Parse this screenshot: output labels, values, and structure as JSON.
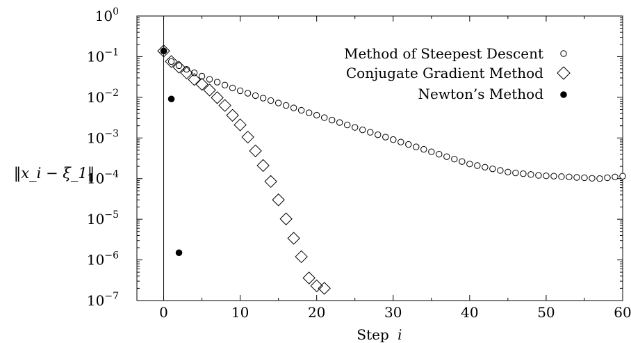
{
  "chart_data": {
    "type": "scatter",
    "title": "",
    "xlabel": "Step",
    "xlabel_var": "i",
    "ylabel": "‖x_i − ξ_1‖",
    "xlim": [
      -3.5,
      60
    ],
    "ylim_exponent": [
      -7,
      0
    ],
    "yscale": "log",
    "grid": false,
    "legend_position": "top-right",
    "x_ticks": [
      0,
      10,
      20,
      30,
      40,
      50,
      60
    ],
    "y_ticks": [
      {
        "value": 1.0,
        "base": "10",
        "exp": "0"
      },
      {
        "value": 0.1,
        "base": "10",
        "exp": "−1"
      },
      {
        "value": 0.01,
        "base": "10",
        "exp": "−2"
      },
      {
        "value": 0.001,
        "base": "10",
        "exp": "−3"
      },
      {
        "value": 0.0001,
        "base": "10",
        "exp": "−4"
      },
      {
        "value": 1e-05,
        "base": "10",
        "exp": "−5"
      },
      {
        "value": 1e-06,
        "base": "10",
        "exp": "−6"
      },
      {
        "value": 1e-07,
        "base": "10",
        "exp": "−7"
      }
    ],
    "series": [
      {
        "name": "Method of Steepest Descent",
        "marker": "open-circle",
        "x": [
          0,
          1,
          2,
          3,
          4,
          5,
          6,
          7,
          8,
          9,
          10,
          11,
          12,
          13,
          14,
          15,
          16,
          17,
          18,
          19,
          20,
          21,
          22,
          23,
          24,
          25,
          26,
          27,
          28,
          29,
          30,
          31,
          32,
          33,
          34,
          35,
          36,
          37,
          38,
          39,
          40,
          41,
          42,
          43,
          44,
          45,
          46,
          47,
          48,
          49,
          50,
          51,
          52,
          53,
          54,
          55,
          56,
          57,
          58,
          59,
          60
        ],
        "y": [
          0.138,
          0.0759,
          0.06,
          0.0487,
          0.0399,
          0.0331,
          0.0278,
          0.0236,
          0.02,
          0.017,
          0.0145,
          0.0126,
          0.011,
          0.00955,
          0.00832,
          0.00724,
          0.00631,
          0.0055,
          0.00479,
          0.00417,
          0.00363,
          0.00316,
          0.00275,
          0.0024,
          0.00209,
          0.00182,
          0.00158,
          0.00138,
          0.0012,
          0.00105,
          0.000912,
          0.000794,
          0.000692,
          0.000603,
          0.000525,
          0.000457,
          0.000398,
          0.000347,
          0.000302,
          0.000263,
          0.000229,
          0.000209,
          0.000191,
          0.000174,
          0.000159,
          0.000145,
          0.000138,
          0.000132,
          0.000126,
          0.00012,
          0.000117,
          0.000115,
          0.000112,
          0.00011,
          0.000107,
          0.000105,
          0.000102,
          0.0001,
          0.000105,
          0.00011,
          0.000115
        ]
      },
      {
        "name": "Conjugate Gradient Method",
        "marker": "open-diamond",
        "x": [
          0,
          1,
          2,
          3,
          4,
          5,
          6,
          7,
          8,
          9,
          10,
          11,
          12,
          13,
          14,
          15,
          16,
          17,
          18,
          19,
          20,
          21
        ],
        "y": [
          0.138,
          0.0759,
          0.055,
          0.0398,
          0.0275,
          0.0209,
          0.0151,
          0.0098,
          0.0063,
          0.0036,
          0.0021,
          0.00105,
          0.00048,
          0.00021,
          8.5e-05,
          3e-05,
          1.02e-05,
          3.4e-06,
          1.2e-06,
          3.6e-07,
          2.3e-07,
          2e-07
        ]
      },
      {
        "name": "Newton’s Method",
        "marker": "filled-circle",
        "x": [
          0,
          1,
          2
        ],
        "y": [
          0.138,
          0.0091,
          1.5e-06
        ]
      }
    ]
  }
}
